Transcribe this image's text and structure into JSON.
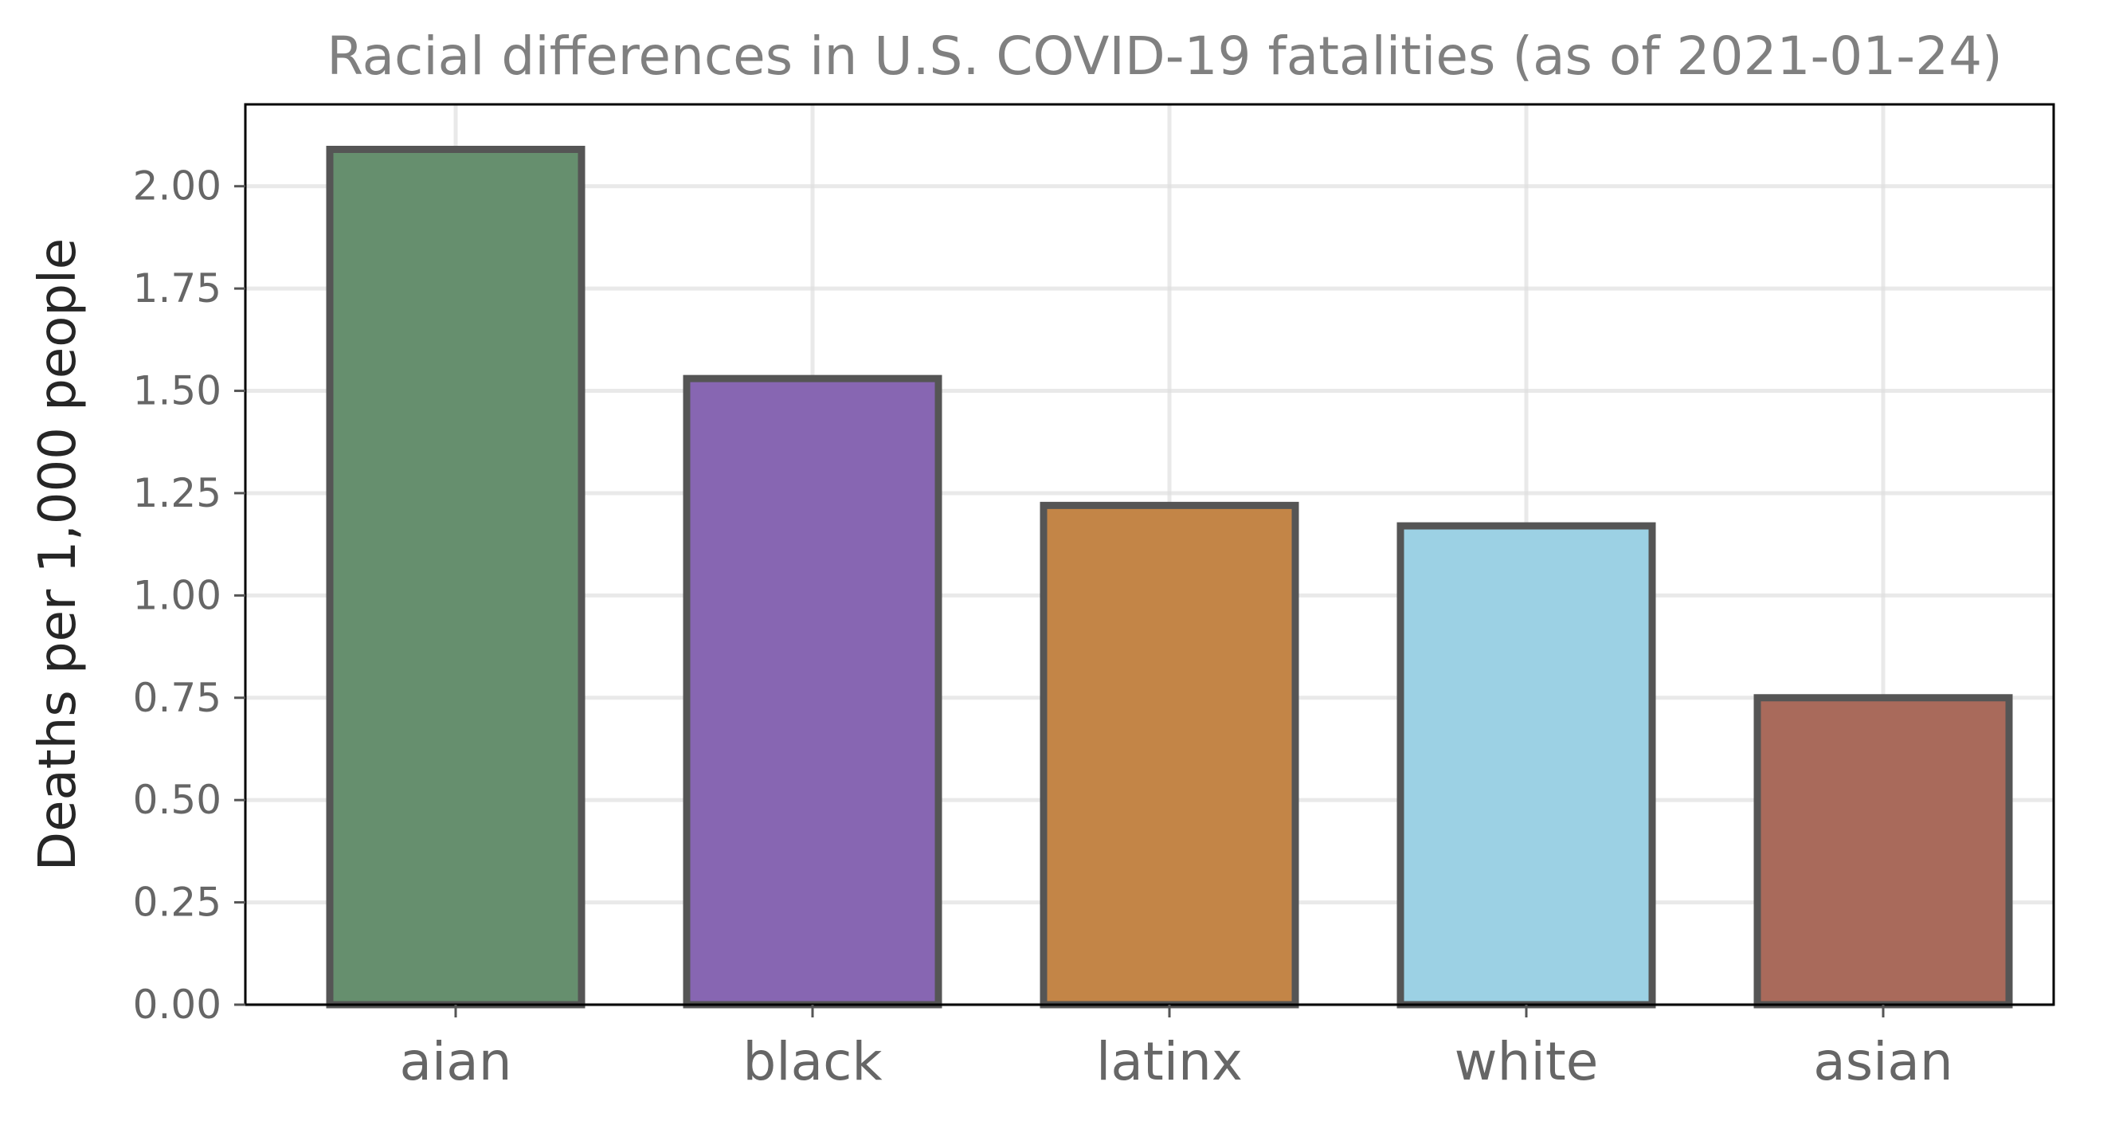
{
  "chart_data": {
    "type": "bar",
    "title": "Racial differences in U.S. COVID-19 fatalities (as of 2021-01-24)",
    "xlabel": "",
    "ylabel": "Deaths per 1,000 people",
    "categories": [
      "aian",
      "black",
      "latinx",
      "white",
      "asian"
    ],
    "values": [
      2.09,
      1.53,
      1.22,
      1.17,
      0.75
    ],
    "colors": [
      "#668f6e",
      "#8766b2",
      "#c38547",
      "#9cd1e4",
      "#a96a5b"
    ],
    "edge_color": "#555555",
    "ylim": [
      0,
      2.2
    ],
    "yticks": [
      "0.00",
      "0.25",
      "0.50",
      "0.75",
      "1.00",
      "1.25",
      "1.50",
      "1.75",
      "2.00"
    ],
    "grid": true,
    "legend": "none"
  }
}
